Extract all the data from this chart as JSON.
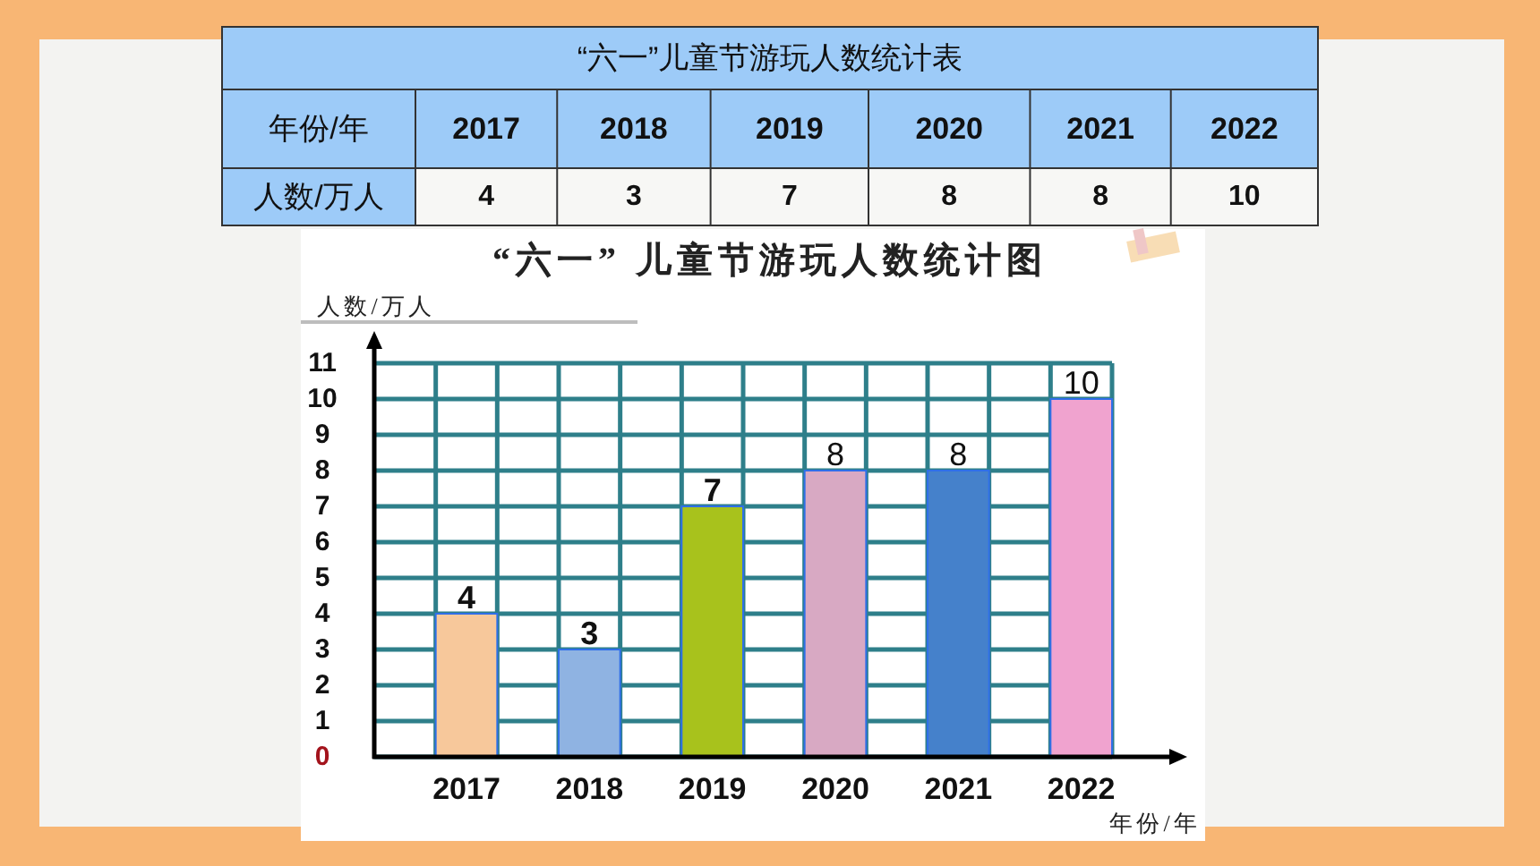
{
  "chart_data": {
    "type": "bar",
    "title": "“六一” 儿童节游玩人数统计图",
    "xlabel": "年份/年",
    "ylabel": "人数/万人",
    "categories": [
      "2017",
      "2018",
      "2019",
      "2020",
      "2021",
      "2022"
    ],
    "values": [
      4,
      3,
      7,
      8,
      8,
      10
    ],
    "value_labels": [
      "4",
      "3",
      "7",
      "8",
      "8",
      "10"
    ],
    "colors": [
      "#f7c89b",
      "#8fb3e2",
      "#a8c21c",
      "#d8a9c3",
      "#4581cb",
      "#f0a3cf"
    ],
    "ylim": [
      0,
      11
    ],
    "yticks": [
      0,
      1,
      2,
      3,
      4,
      5,
      6,
      7,
      8,
      9,
      10,
      11
    ],
    "grid": true,
    "annotations": [
      "“六一”儿童节游玩人数统计表"
    ]
  }
}
